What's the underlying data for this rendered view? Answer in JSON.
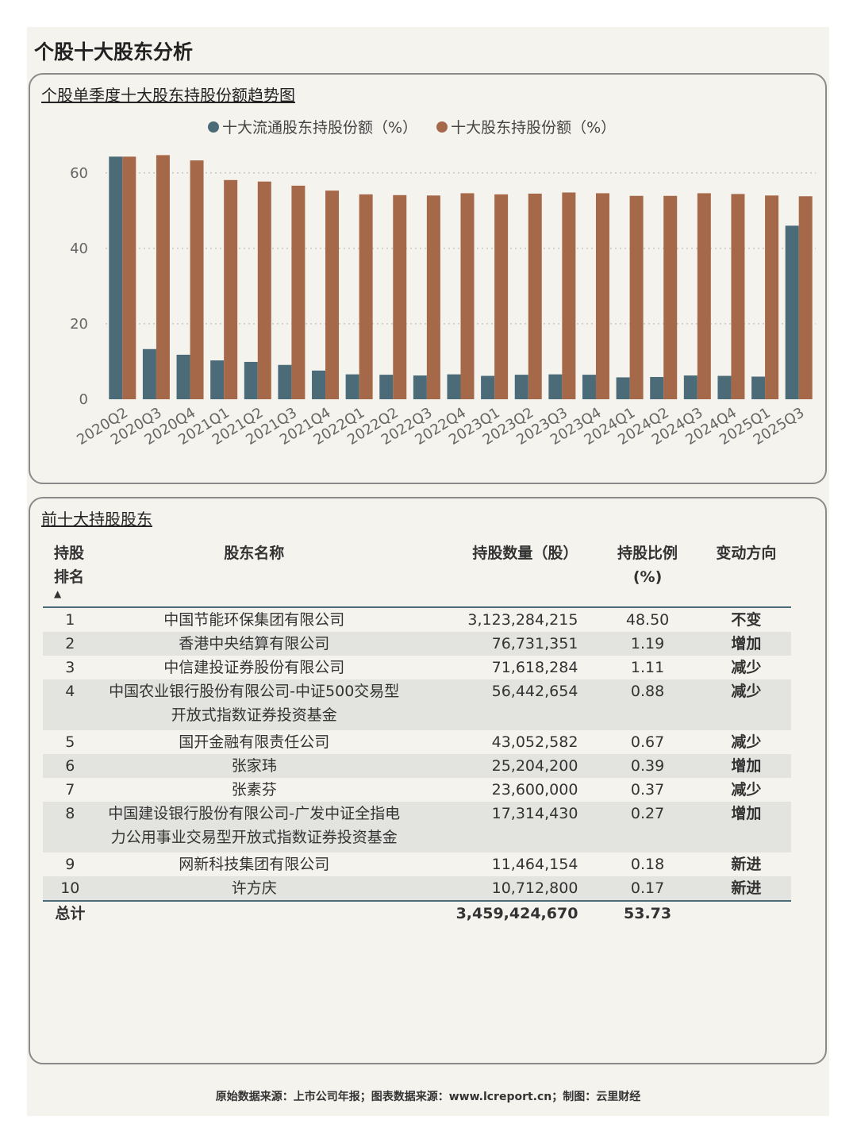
{
  "page_title": "个股十大股东分析",
  "chart_panel": {
    "title": "个股单季度十大股东持股份额趋势图",
    "legend": [
      {
        "label": "十大流通股东持股份额（%）",
        "color": "#4b6b78"
      },
      {
        "label": "十大股东持股份额（%）",
        "color": "#a5694a"
      }
    ]
  },
  "chart_data": {
    "type": "bar",
    "title": "个股单季度十大股东持股份额趋势图",
    "xlabel": "",
    "ylabel": "",
    "ylim": [
      0,
      65
    ],
    "yticks": [
      0,
      20,
      40,
      60
    ],
    "grid": true,
    "legend_position": "top",
    "categories": [
      "2020Q2",
      "2020Q3",
      "2020Q4",
      "2021Q1",
      "2021Q2",
      "2021Q3",
      "2021Q4",
      "2022Q1",
      "2022Q2",
      "2022Q3",
      "2022Q4",
      "2023Q1",
      "2023Q2",
      "2023Q3",
      "2023Q4",
      "2024Q1",
      "2024Q2",
      "2024Q3",
      "2024Q4",
      "2025Q1",
      "2025Q3"
    ],
    "series": [
      {
        "name": "十大流通股东持股份额（%）",
        "color": "#4b6b78",
        "values": [
          64.3,
          13.3,
          11.8,
          10.3,
          9.9,
          9.1,
          7.6,
          6.6,
          6.5,
          6.3,
          6.6,
          6.2,
          6.5,
          6.6,
          6.5,
          5.8,
          5.9,
          6.3,
          6.2,
          6.0,
          46.0
        ]
      },
      {
        "name": "十大股东持股份额（%）",
        "color": "#a5694a",
        "values": [
          64.3,
          64.7,
          63.3,
          58.1,
          57.7,
          56.6,
          55.3,
          54.3,
          54.1,
          54.0,
          54.6,
          54.3,
          54.5,
          54.8,
          54.6,
          53.9,
          53.9,
          54.6,
          54.4,
          54.0,
          53.8
        ]
      }
    ]
  },
  "table_panel": {
    "title": "前十大持股股东",
    "headers": {
      "rank_line1": "持股",
      "rank_line2": "排名",
      "sort_icon": "▲",
      "name": "股东名称",
      "shares": "持股数量（股）",
      "ratio_line1": "持股比例",
      "ratio_line2": "(%)",
      "direction": "变动方向"
    },
    "rows": [
      {
        "rank": "1",
        "name1": "中国节能环保集团有限公司",
        "name2": "",
        "shares": "3,123,284,215",
        "ratio": "48.50",
        "direction": "不变"
      },
      {
        "rank": "2",
        "name1": "香港中央结算有限公司",
        "name2": "",
        "shares": "76,731,351",
        "ratio": "1.19",
        "direction": "增加"
      },
      {
        "rank": "3",
        "name1": "中信建投证券股份有限公司",
        "name2": "",
        "shares": "71,618,284",
        "ratio": "1.11",
        "direction": "减少"
      },
      {
        "rank": "4",
        "name1": "中国农业银行股份有限公司-中证500交易型",
        "name2": "开放式指数证券投资基金",
        "shares": "56,442,654",
        "ratio": "0.88",
        "direction": "减少"
      },
      {
        "rank": "5",
        "name1": "国开金融有限责任公司",
        "name2": "",
        "shares": "43,052,582",
        "ratio": "0.67",
        "direction": "减少"
      },
      {
        "rank": "6",
        "name1": "张家玮",
        "name2": "",
        "shares": "25,204,200",
        "ratio": "0.39",
        "direction": "增加"
      },
      {
        "rank": "7",
        "name1": "张素芬",
        "name2": "",
        "shares": "23,600,000",
        "ratio": "0.37",
        "direction": "减少"
      },
      {
        "rank": "8",
        "name1": "中国建设银行股份有限公司-广发中证全指电",
        "name2": "力公用事业交易型开放式指数证券投资基金",
        "shares": "17,314,430",
        "ratio": "0.27",
        "direction": "增加"
      },
      {
        "rank": "9",
        "name1": "网新科技集团有限公司",
        "name2": "",
        "shares": "11,464,154",
        "ratio": "0.18",
        "direction": "新进"
      },
      {
        "rank": "10",
        "name1": "许方庆",
        "name2": "",
        "shares": "10,712,800",
        "ratio": "0.17",
        "direction": "新进"
      }
    ],
    "total": {
      "label": "总计",
      "shares": "3,459,424,670",
      "ratio": "53.73"
    }
  },
  "footer": "原始数据来源：上市公司年报；图表数据来源：www.lcreport.cn；制图：云里财经"
}
